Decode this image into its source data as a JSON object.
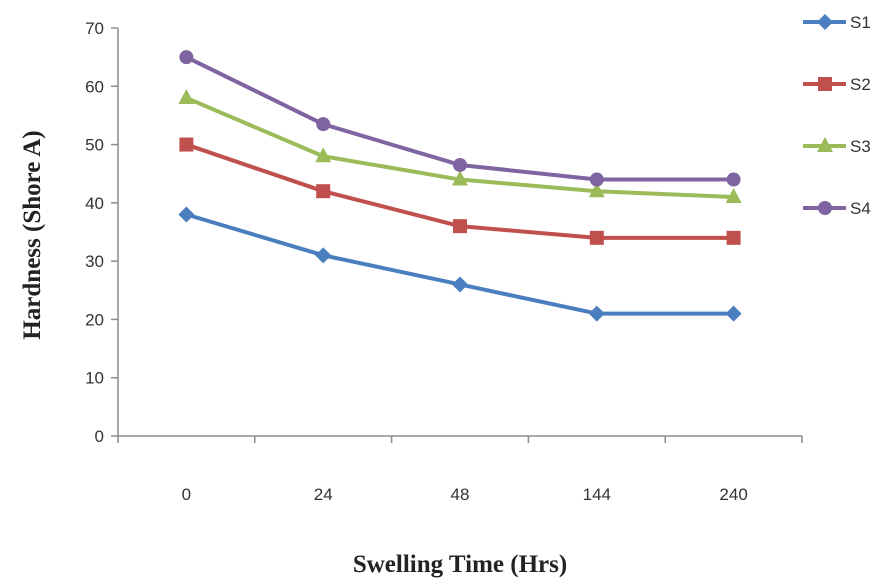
{
  "chart_data": {
    "type": "line",
    "categories": [
      "0",
      "24",
      "48",
      "144",
      "240"
    ],
    "xlabel": "Swelling Time (Hrs)",
    "ylabel": "Hardness (Shore A)",
    "ylim": [
      0,
      70
    ],
    "yticks": [
      "0",
      "10",
      "20",
      "30",
      "40",
      "50",
      "60",
      "70"
    ],
    "grid": false,
    "legend_position": "right",
    "series": [
      {
        "name": "S1",
        "color": "#4a7ebf",
        "marker": "diamond",
        "values": [
          38,
          31,
          26,
          21,
          21
        ]
      },
      {
        "name": "S2",
        "color": "#c0504d",
        "marker": "square",
        "values": [
          50,
          42,
          36,
          34,
          34
        ]
      },
      {
        "name": "S3",
        "color": "#9bbb59",
        "marker": "triangle",
        "values": [
          58,
          48,
          44,
          42,
          41
        ]
      },
      {
        "name": "S4",
        "color": "#8064a2",
        "marker": "circle",
        "values": [
          65,
          53.5,
          46.5,
          44,
          44
        ]
      }
    ]
  }
}
